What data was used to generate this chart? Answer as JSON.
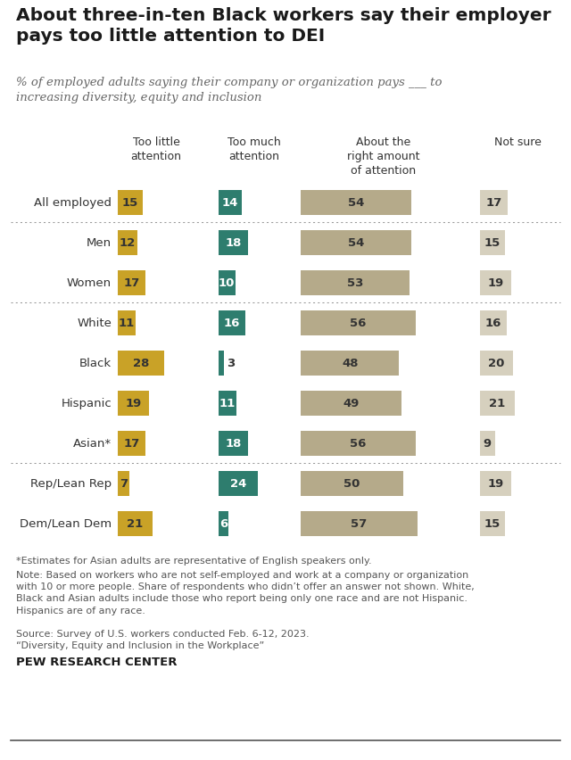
{
  "title": "About three-in-ten Black workers say their employer\npays too little attention to DEI",
  "subtitle": "% of employed adults saying their company or organization pays ___ to\nincreasing diversity, equity and inclusion",
  "categories": [
    "All employed",
    "Men",
    "Women",
    "White",
    "Black",
    "Hispanic",
    "Asian*",
    "Rep/Lean Rep",
    "Dem/Lean Dem"
  ],
  "col_headers": [
    "Too little\nattention",
    "Too much\nattention",
    "About the\nright amount\nof attention",
    "Not sure"
  ],
  "too_little": [
    15,
    12,
    17,
    11,
    28,
    19,
    17,
    7,
    21
  ],
  "too_much": [
    14,
    18,
    10,
    16,
    3,
    11,
    18,
    24,
    6
  ],
  "right_amount": [
    54,
    54,
    53,
    56,
    48,
    49,
    56,
    50,
    57
  ],
  "not_sure": [
    17,
    15,
    19,
    16,
    20,
    21,
    9,
    19,
    15
  ],
  "color_too_little": "#C9A227",
  "color_too_much": "#2E7D6E",
  "color_right_amount": "#B5AA8A",
  "color_not_sure": "#D6D0BE",
  "text_color_dark": "#333333",
  "text_color_light": "#FFFFFF",
  "sep_after_rows": [
    0,
    2,
    6
  ],
  "footnote1": "*Estimates for Asian adults are representative of English speakers only.",
  "footnote2": "Note: Based on workers who are not self-employed and work at a company or organization\nwith 10 or more people. Share of respondents who didn’t offer an answer not shown. White,\nBlack and Asian adults include those who report being only one race and are not Hispanic.\nHispanics are of any race.",
  "footnote3": "Source: Survey of U.S. workers conducted Feb. 6-12, 2023.\n“Diversity, Equity and Inclusion in the Workplace”",
  "source_label": "PEW RESEARCH CENTER",
  "background_color": "#FFFFFF",
  "title_fontsize": 14.5,
  "subtitle_fontsize": 9.5,
  "header_fontsize": 9,
  "label_fontsize": 9.5,
  "bar_val_fontsize": 9.5,
  "footnote_fontsize": 8,
  "source_fontsize": 9.5
}
